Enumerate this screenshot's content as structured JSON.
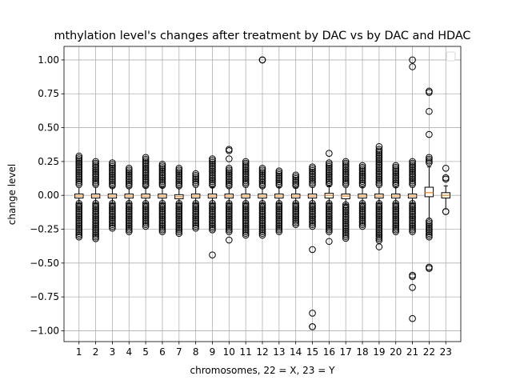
{
  "chart_data": {
    "type": "box",
    "title": "mthylation level's changes after treatment by DAC vs by DAC and HDAC",
    "xlabel": "chromosomes, 22 = X, 23 = Y",
    "ylabel": "change level",
    "ylim": [
      -1.08,
      1.1
    ],
    "yticks": [
      -1.0,
      -0.75,
      -0.5,
      -0.25,
      0.0,
      0.25,
      0.5,
      0.75,
      1.0
    ],
    "ytick_labels": [
      "−1.00",
      "−0.75",
      "−0.50",
      "−0.25",
      "0.00",
      "0.25",
      "0.50",
      "0.75",
      "1.00"
    ],
    "grid": true,
    "legend": "upper right (empty)",
    "colors": {
      "box": "#000000",
      "median": "#ff7f0e",
      "grid": "#b0b0b0",
      "flier": "#000000"
    },
    "categories": [
      "1",
      "2",
      "3",
      "4",
      "5",
      "6",
      "7",
      "8",
      "9",
      "10",
      "11",
      "12",
      "13",
      "14",
      "15",
      "16",
      "17",
      "18",
      "19",
      "20",
      "21",
      "22",
      "23"
    ],
    "boxes": [
      {
        "cat": "1",
        "q1": -0.02,
        "median": -0.005,
        "q3": 0.01,
        "whisker_low": -0.06,
        "whisker_high": 0.06,
        "flier_high": [
          0.07,
          0.29
        ],
        "flier_low": [
          -0.06,
          -0.31
        ]
      },
      {
        "cat": "2",
        "q1": -0.02,
        "median": -0.005,
        "q3": 0.01,
        "whisker_low": -0.06,
        "whisker_high": 0.06,
        "flier_high": [
          0.07,
          0.25
        ],
        "flier_low": [
          -0.06,
          -0.33
        ]
      },
      {
        "cat": "3",
        "q1": -0.02,
        "median": -0.005,
        "q3": 0.01,
        "whisker_low": -0.06,
        "whisker_high": 0.06,
        "flier_high": [
          0.07,
          0.24
        ],
        "flier_low": [
          -0.06,
          -0.25
        ]
      },
      {
        "cat": "4",
        "q1": -0.02,
        "median": -0.005,
        "q3": 0.01,
        "whisker_low": -0.06,
        "whisker_high": 0.06,
        "flier_high": [
          0.07,
          0.2
        ],
        "flier_low": [
          -0.06,
          -0.27
        ]
      },
      {
        "cat": "5",
        "q1": -0.02,
        "median": -0.005,
        "q3": 0.01,
        "whisker_low": -0.06,
        "whisker_high": 0.06,
        "flier_high": [
          0.07,
          0.28
        ],
        "flier_low": [
          -0.06,
          -0.24
        ]
      },
      {
        "cat": "6",
        "q1": -0.02,
        "median": -0.005,
        "q3": 0.01,
        "whisker_low": -0.06,
        "whisker_high": 0.06,
        "flier_high": [
          0.07,
          0.23
        ],
        "flier_low": [
          -0.06,
          -0.28
        ]
      },
      {
        "cat": "7",
        "q1": -0.025,
        "median": -0.01,
        "q3": 0.005,
        "whisker_low": -0.06,
        "whisker_high": 0.06,
        "flier_high": [
          0.07,
          0.2
        ],
        "flier_low": [
          -0.06,
          -0.29
        ]
      },
      {
        "cat": "8",
        "q1": -0.02,
        "median": -0.005,
        "q3": 0.01,
        "whisker_low": -0.06,
        "whisker_high": 0.06,
        "flier_high": [
          0.07,
          0.16
        ],
        "flier_low": [
          -0.06,
          -0.25
        ]
      },
      {
        "cat": "9",
        "q1": -0.02,
        "median": -0.005,
        "q3": 0.01,
        "whisker_low": -0.06,
        "whisker_high": 0.06,
        "flier_high": [
          0.07,
          0.27
        ],
        "flier_low": [
          -0.06,
          -0.26
        ],
        "extra_fliers": [
          -0.44
        ]
      },
      {
        "cat": "10",
        "q1": -0.02,
        "median": -0.005,
        "q3": 0.01,
        "whisker_low": -0.06,
        "whisker_high": 0.06,
        "flier_high": [
          0.07,
          0.2
        ],
        "flier_low": [
          -0.06,
          -0.27
        ],
        "extra_fliers": [
          0.34,
          0.33,
          0.27,
          -0.33
        ]
      },
      {
        "cat": "11",
        "q1": -0.02,
        "median": -0.005,
        "q3": 0.01,
        "whisker_low": -0.06,
        "whisker_high": 0.06,
        "flier_high": [
          0.07,
          0.25
        ],
        "flier_low": [
          -0.06,
          -0.3
        ]
      },
      {
        "cat": "12",
        "q1": -0.02,
        "median": -0.005,
        "q3": 0.01,
        "whisker_low": -0.06,
        "whisker_high": 0.06,
        "flier_high": [
          0.07,
          0.2
        ],
        "flier_low": [
          -0.06,
          -0.3
        ],
        "extra_fliers": [
          1.0,
          1.0
        ]
      },
      {
        "cat": "13",
        "q1": -0.02,
        "median": -0.005,
        "q3": 0.01,
        "whisker_low": -0.06,
        "whisker_high": 0.06,
        "flier_high": [
          0.07,
          0.18
        ],
        "flier_low": [
          -0.06,
          -0.27
        ]
      },
      {
        "cat": "14",
        "q1": -0.02,
        "median": -0.005,
        "q3": 0.01,
        "whisker_low": -0.06,
        "whisker_high": 0.06,
        "flier_high": [
          0.07,
          0.15
        ],
        "flier_low": [
          -0.06,
          -0.22
        ]
      },
      {
        "cat": "15",
        "q1": -0.02,
        "median": -0.005,
        "q3": 0.01,
        "whisker_low": -0.06,
        "whisker_high": 0.06,
        "flier_high": [
          0.07,
          0.21
        ],
        "flier_low": [
          -0.06,
          -0.24
        ],
        "extra_fliers": [
          -0.4,
          -0.87,
          -0.97,
          -0.97
        ]
      },
      {
        "cat": "16",
        "q1": -0.02,
        "median": 0.0,
        "q3": 0.015,
        "whisker_low": -0.06,
        "whisker_high": 0.07,
        "flier_high": [
          0.08,
          0.24
        ],
        "flier_low": [
          -0.06,
          -0.28
        ],
        "extra_fliers": [
          0.31,
          -0.34
        ]
      },
      {
        "cat": "17",
        "q1": -0.025,
        "median": -0.005,
        "q3": 0.01,
        "whisker_low": -0.07,
        "whisker_high": 0.06,
        "flier_high": [
          0.07,
          0.25
        ],
        "flier_low": [
          -0.07,
          -0.32
        ]
      },
      {
        "cat": "18",
        "q1": -0.02,
        "median": -0.005,
        "q3": 0.01,
        "whisker_low": -0.06,
        "whisker_high": 0.06,
        "flier_high": [
          0.07,
          0.22
        ],
        "flier_low": [
          -0.06,
          -0.23
        ]
      },
      {
        "cat": "19",
        "q1": -0.02,
        "median": -0.005,
        "q3": 0.01,
        "whisker_low": -0.06,
        "whisker_high": 0.06,
        "flier_high": [
          0.07,
          0.34
        ],
        "flier_low": [
          -0.06,
          -0.34
        ],
        "extra_fliers": [
          0.36,
          -0.38
        ]
      },
      {
        "cat": "20",
        "q1": -0.02,
        "median": -0.005,
        "q3": 0.01,
        "whisker_low": -0.06,
        "whisker_high": 0.06,
        "flier_high": [
          0.07,
          0.22
        ],
        "flier_low": [
          -0.06,
          -0.27
        ]
      },
      {
        "cat": "21",
        "q1": -0.02,
        "median": -0.005,
        "q3": 0.01,
        "whisker_low": -0.06,
        "whisker_high": 0.06,
        "flier_high": [
          0.07,
          0.25
        ],
        "flier_low": [
          -0.06,
          -0.27
        ],
        "extra_fliers": [
          1.0,
          0.95,
          -0.59,
          -0.6,
          -0.68,
          -0.91
        ]
      },
      {
        "cat": "22",
        "q1": -0.01,
        "median": 0.02,
        "q3": 0.06,
        "whisker_low": -0.17,
        "whisker_high": 0.21,
        "flier_high": [
          0.24,
          0.28
        ],
        "flier_low": [
          -0.19,
          -0.31
        ],
        "extra_fliers": [
          0.77,
          0.76,
          0.62,
          0.45,
          -0.53,
          -0.54
        ]
      },
      {
        "cat": "23",
        "q1": -0.02,
        "median": 0.0,
        "q3": 0.02,
        "whisker_low": -0.1,
        "whisker_high": 0.07,
        "flier_high": [],
        "flier_low": [],
        "extra_fliers": [
          0.2,
          0.13,
          0.12,
          -0.12,
          -0.12
        ]
      }
    ]
  }
}
